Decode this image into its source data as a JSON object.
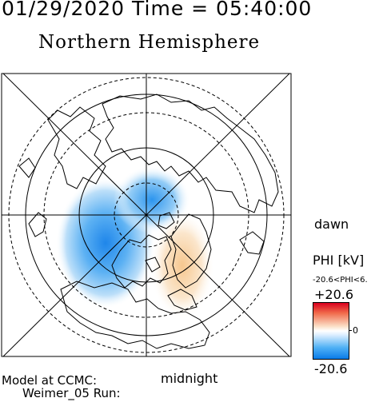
{
  "header": {
    "datetime": "01/29/2020 Time = 05:40:00",
    "hemisphere": "Northern Hemisphere"
  },
  "map": {
    "dawn_label": "dawn",
    "midnight_label": "midnight"
  },
  "colorbar": {
    "label": "PHI [kV]",
    "range_text": "-20.6<PHI<6.",
    "max": "+20.6",
    "zero": "0",
    "min": "-20.6",
    "colors": {
      "high": "#d9001f",
      "mid": "#ffffff",
      "low": "#0a7be8"
    }
  },
  "footer": {
    "model_line": "Model at CCMC:",
    "run_line": "Weimer_05 Run:"
  }
}
